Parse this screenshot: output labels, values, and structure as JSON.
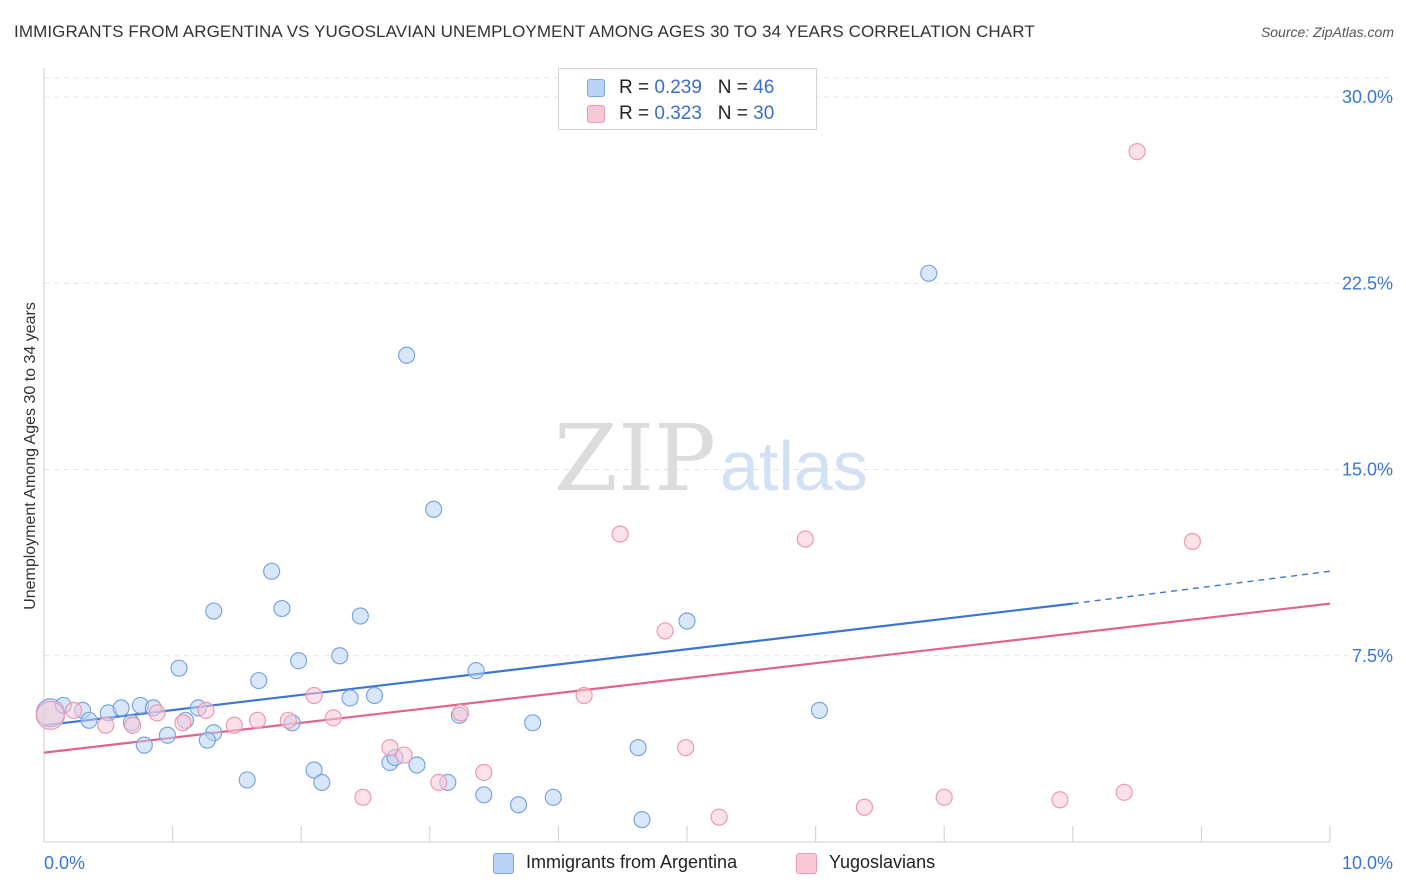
{
  "title": "IMMIGRANTS FROM ARGENTINA VS YUGOSLAVIAN UNEMPLOYMENT AMONG AGES 30 TO 34 YEARS CORRELATION CHART",
  "source": "Source: ZipAtlas.com",
  "watermark": {
    "part1": "ZIP",
    "part2": "atlas"
  },
  "legend": {
    "r_label": "R =",
    "n_label": "N =",
    "series": [
      {
        "name": "Immigrants from Argentina",
        "r": "0.239",
        "n": "46",
        "fill": "#b9d3f5",
        "stroke": "#7aa5e0"
      },
      {
        "name": "Yugoslavians",
        "r": "0.323",
        "n": "30",
        "fill": "#f9c8d6",
        "stroke": "#ec9ab2"
      }
    ]
  },
  "chart_data": {
    "type": "scatter",
    "title": "IMMIGRANTS FROM ARGENTINA VS YUGOSLAVIAN UNEMPLOYMENT AMONG AGES 30 TO 34 YEARS CORRELATION CHART",
    "xlabel": "",
    "ylabel": "Unemployment Among Ages 30 to 34 years",
    "xlim": [
      0,
      10
    ],
    "ylim": [
      0,
      30
    ],
    "x_tick_labels": [
      {
        "value": 0,
        "label": "0.0%"
      },
      {
        "value": 10,
        "label": "10.0%"
      }
    ],
    "y_tick_labels": [
      {
        "value": 7.5,
        "label": "7.5%"
      },
      {
        "value": 15,
        "label": "15.0%"
      },
      {
        "value": 22.5,
        "label": "22.5%"
      },
      {
        "value": 30,
        "label": "30.0%"
      }
    ],
    "x_minor_ticks": [
      1,
      2,
      3,
      4,
      5,
      6,
      7,
      8,
      9,
      10
    ],
    "grid": true,
    "series": [
      {
        "name": "Immigrants from Argentina",
        "color": "#3a76d2",
        "points": [
          {
            "x": 0.05,
            "y": 5.2,
            "size": "large"
          },
          {
            "x": 0.15,
            "y": 5.5
          },
          {
            "x": 0.3,
            "y": 5.3
          },
          {
            "x": 0.35,
            "y": 4.9
          },
          {
            "x": 0.5,
            "y": 5.2
          },
          {
            "x": 0.6,
            "y": 5.4
          },
          {
            "x": 0.75,
            "y": 5.5
          },
          {
            "x": 0.68,
            "y": 4.8
          },
          {
            "x": 0.78,
            "y": 3.9
          },
          {
            "x": 0.85,
            "y": 5.4
          },
          {
            "x": 0.96,
            "y": 4.3
          },
          {
            "x": 1.05,
            "y": 7.0
          },
          {
            "x": 1.1,
            "y": 4.9
          },
          {
            "x": 1.2,
            "y": 5.4
          },
          {
            "x": 1.32,
            "y": 4.4
          },
          {
            "x": 1.32,
            "y": 9.3
          },
          {
            "x": 1.27,
            "y": 4.1
          },
          {
            "x": 1.58,
            "y": 2.5
          },
          {
            "x": 1.67,
            "y": 6.5
          },
          {
            "x": 1.77,
            "y": 10.9
          },
          {
            "x": 1.85,
            "y": 9.4
          },
          {
            "x": 1.93,
            "y": 4.8
          },
          {
            "x": 1.98,
            "y": 7.3
          },
          {
            "x": 2.1,
            "y": 2.9
          },
          {
            "x": 2.16,
            "y": 2.4
          },
          {
            "x": 2.3,
            "y": 7.5
          },
          {
            "x": 2.38,
            "y": 5.8
          },
          {
            "x": 2.46,
            "y": 9.1
          },
          {
            "x": 2.57,
            "y": 5.9
          },
          {
            "x": 2.69,
            "y": 3.2
          },
          {
            "x": 2.73,
            "y": 3.4
          },
          {
            "x": 2.9,
            "y": 3.1
          },
          {
            "x": 2.82,
            "y": 19.6
          },
          {
            "x": 3.03,
            "y": 13.4
          },
          {
            "x": 3.14,
            "y": 2.4
          },
          {
            "x": 3.23,
            "y": 5.1
          },
          {
            "x": 3.36,
            "y": 6.9
          },
          {
            "x": 3.42,
            "y": 1.9
          },
          {
            "x": 3.69,
            "y": 1.5
          },
          {
            "x": 3.8,
            "y": 4.8
          },
          {
            "x": 3.96,
            "y": 1.8
          },
          {
            "x": 4.62,
            "y": 3.8
          },
          {
            "x": 4.65,
            "y": 0.9
          },
          {
            "x": 5.0,
            "y": 8.9
          },
          {
            "x": 6.03,
            "y": 5.3
          },
          {
            "x": 6.88,
            "y": 22.9
          }
        ],
        "trend": {
          "x1": 0,
          "y1": 4.7,
          "x2": 8.0,
          "y2": 9.6,
          "dashed_x2": 10.0,
          "dashed_y2": 10.9
        }
      },
      {
        "name": "Yugoslavians",
        "color": "#e2648e",
        "points": [
          {
            "x": 0.05,
            "y": 5.1,
            "size": "large"
          },
          {
            "x": 0.23,
            "y": 5.3
          },
          {
            "x": 0.48,
            "y": 4.7
          },
          {
            "x": 0.69,
            "y": 4.7
          },
          {
            "x": 0.88,
            "y": 5.2
          },
          {
            "x": 1.08,
            "y": 4.8
          },
          {
            "x": 1.26,
            "y": 5.3
          },
          {
            "x": 1.48,
            "y": 4.7
          },
          {
            "x": 1.66,
            "y": 4.9
          },
          {
            "x": 1.9,
            "y": 4.9
          },
          {
            "x": 2.1,
            "y": 5.9
          },
          {
            "x": 2.25,
            "y": 5.0
          },
          {
            "x": 2.48,
            "y": 1.8
          },
          {
            "x": 2.69,
            "y": 3.8
          },
          {
            "x": 2.8,
            "y": 3.5
          },
          {
            "x": 3.07,
            "y": 2.4
          },
          {
            "x": 3.24,
            "y": 5.2
          },
          {
            "x": 3.42,
            "y": 2.8
          },
          {
            "x": 4.2,
            "y": 5.9
          },
          {
            "x": 4.48,
            "y": 12.4
          },
          {
            "x": 4.83,
            "y": 8.5
          },
          {
            "x": 4.99,
            "y": 3.8
          },
          {
            "x": 5.25,
            "y": 1.0
          },
          {
            "x": 5.92,
            "y": 12.2
          },
          {
            "x": 6.38,
            "y": 1.4
          },
          {
            "x": 7.0,
            "y": 1.8
          },
          {
            "x": 7.9,
            "y": 1.7
          },
          {
            "x": 8.4,
            "y": 2.0
          },
          {
            "x": 8.5,
            "y": 27.8
          },
          {
            "x": 8.93,
            "y": 12.1
          }
        ],
        "trend": {
          "x1": 0,
          "y1": 3.6,
          "x2": 10.0,
          "y2": 9.6
        }
      }
    ]
  }
}
